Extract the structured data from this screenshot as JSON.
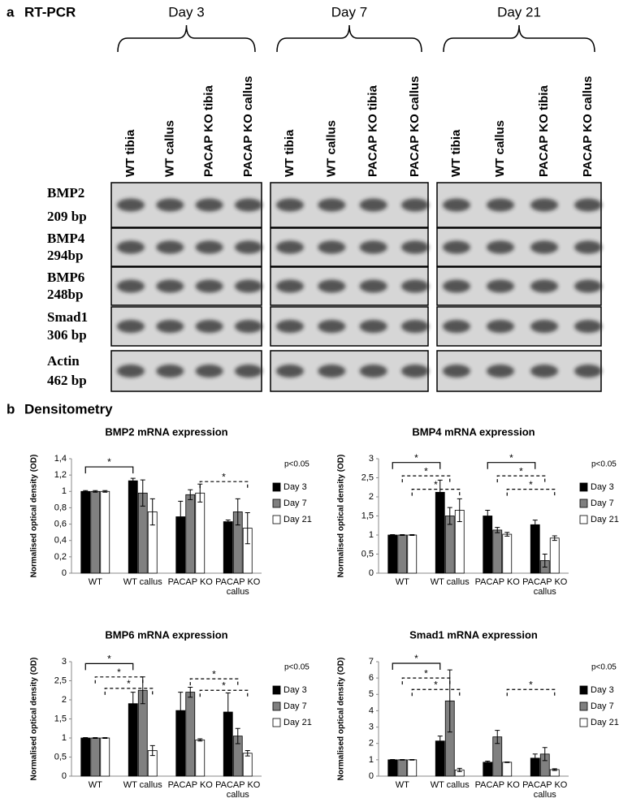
{
  "panel_a": {
    "label": "a",
    "title": "RT-PCR",
    "days": [
      "Day 3",
      "Day 7",
      "Day 21"
    ],
    "lanes": [
      "WT tibia",
      "WT callus",
      "PACAP KO tibia",
      "PACAP KO callus"
    ],
    "genes": [
      {
        "name": "BMP2",
        "size": "209 bp"
      },
      {
        "name": "BMP4",
        "size": "294bp"
      },
      {
        "name": "BMP6",
        "size": "248bp"
      },
      {
        "name": "Smad1",
        "size": "306 bp"
      },
      {
        "name": "Actin",
        "size": "462 bp"
      }
    ]
  },
  "panel_b": {
    "label": "b",
    "title": "Densitometry"
  },
  "chart_data": [
    {
      "type": "bar",
      "title": "BMP2 mRNA expression",
      "ylabel": "Normalised optical density (OD)",
      "p_note": "p<0.05",
      "categories": [
        "WT",
        "WT callus",
        "PACAP KO",
        "PACAP KO callus"
      ],
      "series": [
        {
          "name": "Day 3",
          "color": "#000000",
          "values": [
            1,
            1.13,
            0.69,
            0.63
          ],
          "errors": [
            0.01,
            0.03,
            0.19,
            0.02
          ]
        },
        {
          "name": "Day 7",
          "color": "#808080",
          "values": [
            1,
            0.98,
            0.96,
            0.75
          ],
          "errors": [
            0.01,
            0.16,
            0.06,
            0.16
          ]
        },
        {
          "name": "Day 21",
          "color": "#ffffff",
          "values": [
            1,
            0.75,
            0.98,
            0.55
          ],
          "errors": [
            0.01,
            0.16,
            0.11,
            0.19
          ]
        }
      ],
      "ylim": [
        0,
        1.4
      ],
      "yticks": [
        0,
        {
          "value": 0.2,
          "label": "0,2"
        },
        {
          "value": 0.4,
          "label": "0,4"
        },
        {
          "value": 0.6,
          "label": "0,6"
        },
        {
          "value": 0.8,
          "label": "0,8"
        },
        1,
        {
          "value": 1.2,
          "label": "1,2"
        },
        {
          "value": 1.4,
          "label": "1,4"
        }
      ],
      "significance": [
        {
          "from": [
            0,
            0
          ],
          "to": [
            1,
            0
          ],
          "y": 1.3,
          "dashed": false,
          "label": "*"
        },
        {
          "from": [
            2,
            2
          ],
          "to": [
            3,
            2
          ],
          "y": 1.12,
          "dashed": true,
          "label": "*"
        }
      ]
    },
    {
      "type": "bar",
      "title": "BMP4 mRNA expression",
      "ylabel": "Normalised optical density (OD)",
      "p_note": "p<0.05",
      "categories": [
        "WT",
        "WT callus",
        "PACAP KO",
        "PACAP KO callus"
      ],
      "series": [
        {
          "name": "Day 3",
          "color": "#000000",
          "values": [
            1,
            2.12,
            1.5,
            1.27
          ],
          "errors": [
            0.01,
            0.32,
            0.15,
            0.12
          ]
        },
        {
          "name": "Day 7",
          "color": "#808080",
          "values": [
            1,
            1.5,
            1.13,
            0.33
          ],
          "errors": [
            0.01,
            0.22,
            0.07,
            0.17
          ]
        },
        {
          "name": "Day 21",
          "color": "#ffffff",
          "values": [
            1,
            1.65,
            1.02,
            0.92
          ],
          "errors": [
            0.01,
            0.3,
            0.05,
            0.06
          ]
        }
      ],
      "ylim": [
        0,
        3
      ],
      "yticks": [
        0,
        {
          "value": 0.5,
          "label": "0,5"
        },
        1,
        {
          "value": 1.5,
          "label": "1,5"
        },
        2,
        {
          "value": 2.5,
          "label": "2,5"
        },
        3
      ],
      "significance": [
        {
          "from": [
            0,
            0
          ],
          "to": [
            1,
            0
          ],
          "y": 2.9,
          "dashed": false,
          "label": "*"
        },
        {
          "from": [
            0,
            1
          ],
          "to": [
            1,
            1
          ],
          "y": 2.55,
          "dashed": true,
          "label": "*"
        },
        {
          "from": [
            0,
            2
          ],
          "to": [
            1,
            2
          ],
          "y": 2.2,
          "dashed": true,
          "label": "*"
        },
        {
          "from": [
            2,
            0
          ],
          "to": [
            3,
            0
          ],
          "y": 2.9,
          "dashed": false,
          "label": "*"
        },
        {
          "from": [
            2,
            1
          ],
          "to": [
            3,
            1
          ],
          "y": 2.55,
          "dashed": true,
          "label": "*"
        },
        {
          "from": [
            2,
            2
          ],
          "to": [
            3,
            2
          ],
          "y": 2.2,
          "dashed": true,
          "label": "*"
        }
      ]
    },
    {
      "type": "bar",
      "title": "BMP6 mRNA expression",
      "ylabel": "Normalised optical density (OD)",
      "p_note": "p<0.05",
      "categories": [
        "WT",
        "WT callus",
        "PACAP KO",
        "PACAP KO callus"
      ],
      "series": [
        {
          "name": "Day 3",
          "color": "#000000",
          "values": [
            1,
            1.9,
            1.72,
            1.68
          ],
          "errors": [
            0.01,
            0.3,
            0.48,
            0.5
          ]
        },
        {
          "name": "Day 7",
          "color": "#808080",
          "values": [
            1,
            2.25,
            2.2,
            1.05
          ],
          "errors": [
            0.01,
            0.35,
            0.13,
            0.2
          ]
        },
        {
          "name": "Day 21",
          "color": "#ffffff",
          "values": [
            1,
            0.67,
            0.95,
            0.6
          ],
          "errors": [
            0.01,
            0.13,
            0.03,
            0.07
          ]
        }
      ],
      "ylim": [
        0,
        3
      ],
      "yticks": [
        0,
        {
          "value": 0.5,
          "label": "0,5"
        },
        1,
        {
          "value": 1.5,
          "label": "1,5"
        },
        2,
        {
          "value": 2.5,
          "label": "2,5"
        },
        3
      ],
      "significance": [
        {
          "from": [
            0,
            0
          ],
          "to": [
            1,
            0
          ],
          "y": 2.95,
          "dashed": false,
          "label": "*"
        },
        {
          "from": [
            0,
            1
          ],
          "to": [
            1,
            1
          ],
          "y": 2.6,
          "dashed": true,
          "label": "*"
        },
        {
          "from": [
            0,
            2
          ],
          "to": [
            1,
            2
          ],
          "y": 2.3,
          "dashed": true,
          "label": "*"
        },
        {
          "from": [
            2,
            1
          ],
          "to": [
            3,
            1
          ],
          "y": 2.55,
          "dashed": true,
          "label": "*"
        },
        {
          "from": [
            2,
            2
          ],
          "to": [
            3,
            2
          ],
          "y": 2.25,
          "dashed": true,
          "label": "*"
        }
      ]
    },
    {
      "type": "bar",
      "title": "Smad1 mRNA expression",
      "ylabel": "Normalised optical density (OD)",
      "p_note": "p<0.05",
      "categories": [
        "WT",
        "WT callus",
        "PACAP KO",
        "PACAP KO callus"
      ],
      "series": [
        {
          "name": "Day 3",
          "color": "#000000",
          "values": [
            1,
            2.15,
            0.85,
            1.1
          ],
          "errors": [
            0.02,
            0.3,
            0.07,
            0.25
          ]
        },
        {
          "name": "Day 7",
          "color": "#808080",
          "values": [
            1,
            4.6,
            2.4,
            1.35
          ],
          "errors": [
            0.02,
            1.9,
            0.4,
            0.4
          ]
        },
        {
          "name": "Day 21",
          "color": "#ffffff",
          "values": [
            1,
            0.38,
            0.85,
            0.4
          ],
          "errors": [
            0.02,
            0.1,
            0.02,
            0.05
          ]
        }
      ],
      "ylim": [
        0,
        7
      ],
      "yticks": [
        0,
        1,
        2,
        3,
        4,
        5,
        6,
        7
      ],
      "significance": [
        {
          "from": [
            0,
            0
          ],
          "to": [
            1,
            0
          ],
          "y": 6.9,
          "dashed": false,
          "label": "*"
        },
        {
          "from": [
            0,
            1
          ],
          "to": [
            1,
            1
          ],
          "y": 6.0,
          "dashed": true,
          "label": "*"
        },
        {
          "from": [
            0,
            2
          ],
          "to": [
            1,
            2
          ],
          "y": 5.3,
          "dashed": true,
          "label": "*"
        },
        {
          "from": [
            2,
            2
          ],
          "to": [
            3,
            2
          ],
          "y": 5.3,
          "dashed": true,
          "label": "*"
        }
      ]
    }
  ]
}
